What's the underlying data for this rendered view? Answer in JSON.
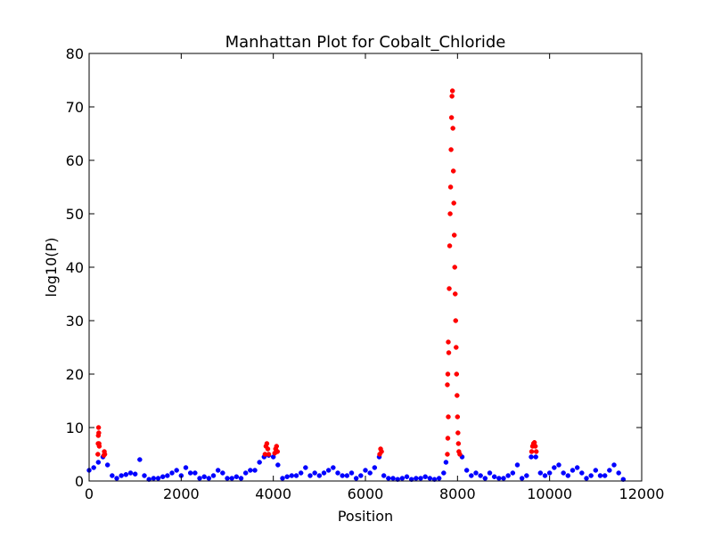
{
  "chart_data": {
    "type": "scatter",
    "title": "Manhattan Plot for Cobalt_Chloride",
    "x_label": "Position",
    "y_label": "log10(P)",
    "xlim": [
      0,
      12000
    ],
    "ylim": [
      0,
      80
    ],
    "xticks": [
      0,
      2000,
      4000,
      6000,
      8000,
      10000,
      12000
    ],
    "yticks": [
      0,
      10,
      20,
      30,
      40,
      50,
      60,
      70,
      80
    ],
    "series": [
      {
        "color": "#0000ff",
        "x": [
          0,
          100,
          200,
          300,
          400,
          500,
          600,
          700,
          800,
          900,
          1000,
          1100,
          1200,
          1300,
          1400,
          1500,
          1600,
          1700,
          1800,
          1900,
          2000,
          2100,
          2200,
          2300,
          2400,
          2500,
          2600,
          2700,
          2800,
          2900,
          3000,
          3100,
          3200,
          3300,
          3400,
          3500,
          3600,
          3700,
          3800,
          3900,
          4000,
          4100,
          4200,
          4300,
          4400,
          4500,
          4600,
          4700,
          4800,
          4900,
          5000,
          5100,
          5200,
          5300,
          5400,
          5500,
          5600,
          5700,
          5800,
          5900,
          6000,
          6100,
          6200,
          6300,
          6400,
          6500,
          6600,
          6700,
          6800,
          6900,
          7000,
          7100,
          7200,
          7300,
          7400,
          7500,
          7600,
          7700,
          7750,
          8100,
          8200,
          8300,
          8400,
          8500,
          8600,
          8700,
          8800,
          8900,
          9000,
          9100,
          9200,
          9300,
          9400,
          9500,
          9600,
          9700,
          9800,
          9900,
          10000,
          10100,
          10200,
          10300,
          10400,
          10500,
          10600,
          10700,
          10800,
          10900,
          11000,
          11100,
          11200,
          11300,
          11400,
          11500,
          11600
        ],
        "values": [
          2,
          2.5,
          3.5,
          4.5,
          3,
          1,
          0.5,
          1,
          1.2,
          1.5,
          1.3,
          4,
          1,
          0.3,
          0.5,
          0.5,
          0.8,
          1,
          1.5,
          2,
          1,
          2.5,
          1.5,
          1.5,
          0.5,
          0.8,
          0.5,
          1,
          2,
          1.5,
          0.5,
          0.5,
          0.8,
          0.5,
          1.5,
          2,
          2,
          3.5,
          4.5,
          4.8,
          4.5,
          3,
          0.5,
          0.8,
          1,
          1,
          1.5,
          2.5,
          1,
          1.5,
          1,
          1.5,
          2,
          2.5,
          1.5,
          1,
          1,
          1.5,
          0.5,
          1,
          2,
          1.5,
          2.5,
          4.5,
          1,
          0.5,
          0.5,
          0.3,
          0.5,
          0.8,
          0.3,
          0.5,
          0.5,
          0.8,
          0.5,
          0.3,
          0.5,
          1.5,
          3.5,
          4.5,
          2,
          1,
          1.5,
          1,
          0.5,
          1.5,
          0.8,
          0.5,
          0.5,
          1,
          1.5,
          3,
          0.5,
          1,
          4.5,
          4.5,
          1.5,
          1,
          1.5,
          2.5,
          3,
          1.5,
          1,
          2,
          2.5,
          1.5,
          0.5,
          1,
          2,
          1,
          1,
          2,
          3,
          1.5,
          0.3
        ]
      },
      {
        "color": "#ff0000",
        "x": [
          190,
          195,
          200,
          205,
          210,
          215,
          220,
          320,
          330,
          340,
          3820,
          3840,
          3860,
          3880,
          3900,
          4030,
          4050,
          4070,
          4090,
          6310,
          6330,
          6350,
          7780,
          7790,
          7800,
          7780,
          7790,
          7800,
          7810,
          7820,
          7830,
          7840,
          7850,
          7860,
          7870,
          7880,
          7890,
          7900,
          7910,
          7920,
          7930,
          7940,
          7950,
          7960,
          7970,
          7980,
          7990,
          8000,
          8010,
          8020,
          8030,
          8050,
          9610,
          9630,
          9650,
          9670,
          9690,
          9710
        ],
        "values": [
          5,
          7,
          8.5,
          10,
          9,
          7,
          6.5,
          4.8,
          5.5,
          5,
          5,
          6.5,
          7,
          6,
          5,
          5.2,
          6,
          6.5,
          5.5,
          5,
          6,
          5.5,
          5,
          8,
          12,
          18,
          20,
          26,
          24,
          36,
          44,
          50,
          55,
          62,
          68,
          72,
          73,
          66,
          58,
          52,
          46,
          40,
          35,
          30,
          25,
          20,
          16,
          12,
          9,
          7,
          5.5,
          5,
          5.5,
          6.5,
          7,
          7.2,
          6.5,
          5.5
        ]
      }
    ]
  }
}
